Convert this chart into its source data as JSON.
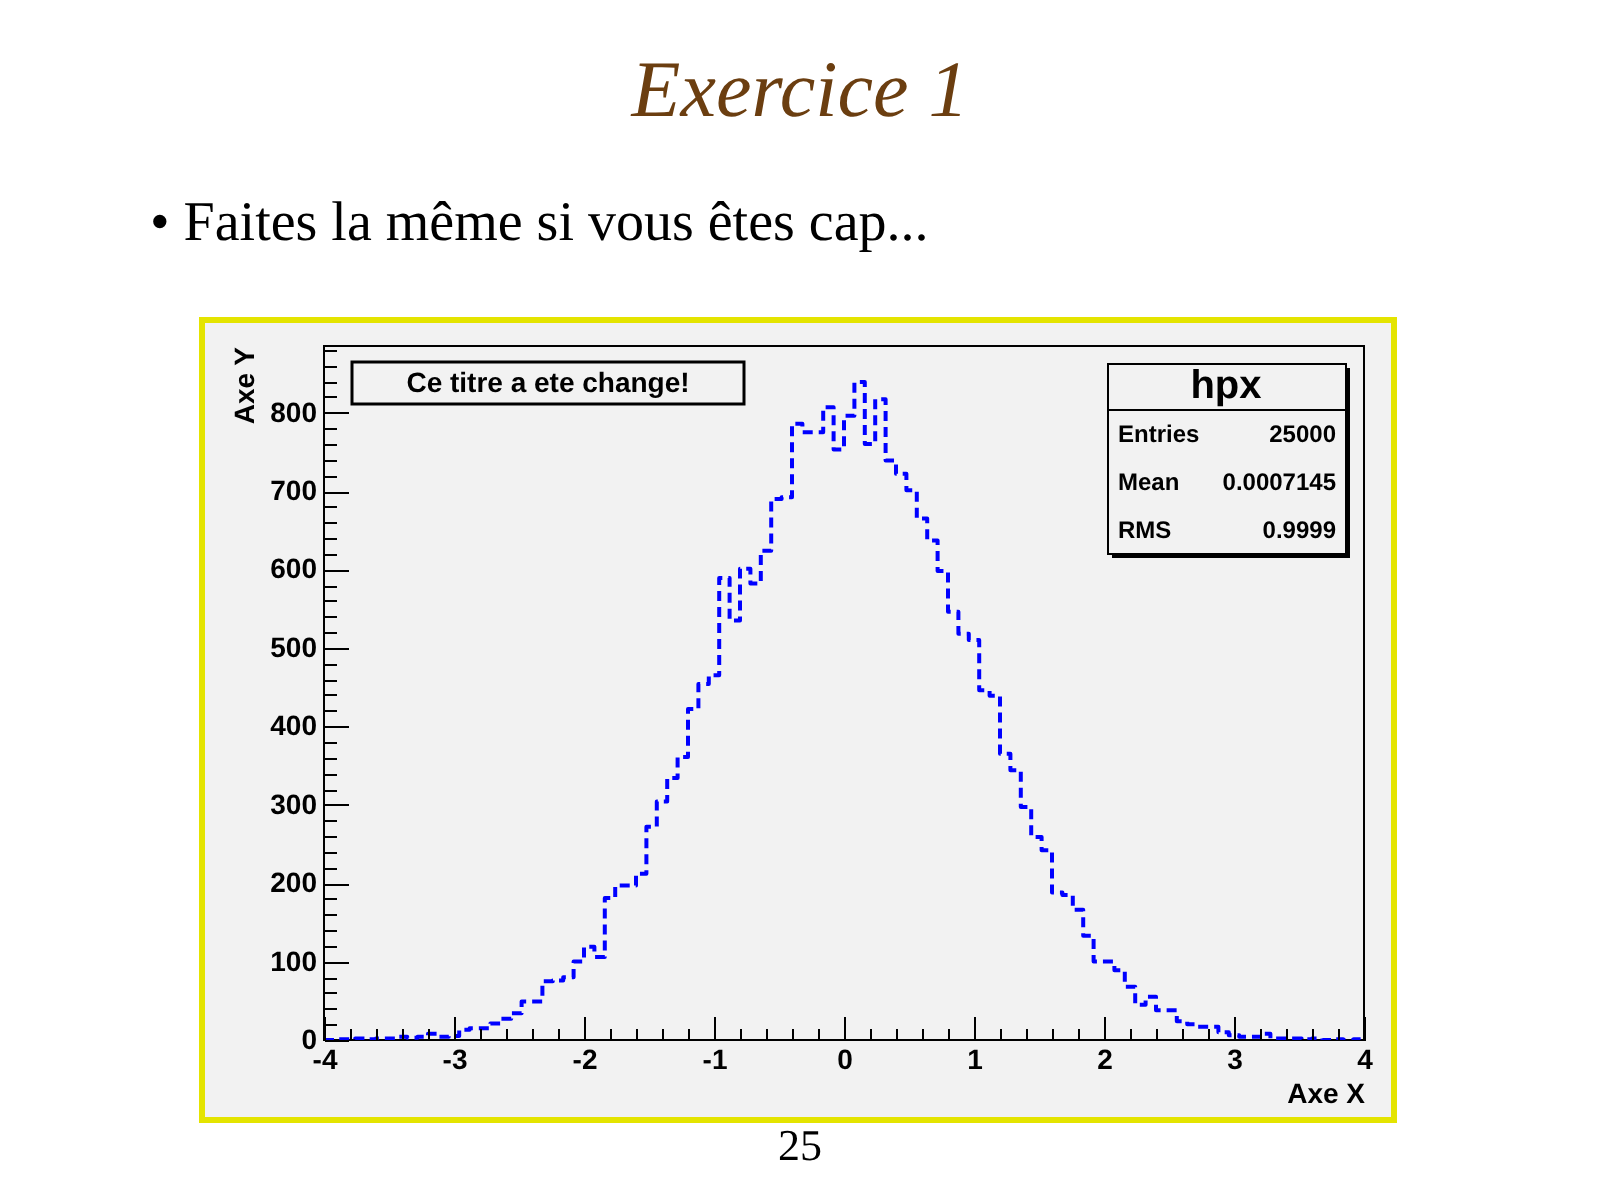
{
  "chart_data": {
    "type": "histogram",
    "title": "Exercice 1",
    "subtitle": "• Faites la même si vous êtes cap...",
    "xlabel": "Axe X",
    "ylabel": "Axe Y",
    "annotations": [
      "Ce titre a ete change!",
      "hpx",
      "Entries",
      "25000",
      "Mean",
      "0.0007145",
      "RMS",
      "0.9999",
      "25"
    ],
    "bins": [
      -4,
      -3.92,
      -3.84,
      -3.76,
      -3.68,
      -3.6,
      -3.52,
      -3.44,
      -3.36,
      -3.28,
      -3.2,
      -3.12,
      -3.04,
      -2.96,
      -2.88,
      -2.8,
      -2.72,
      -2.64,
      -2.56,
      -2.48,
      -2.4,
      -2.32,
      -2.24,
      -2.16,
      -2.08,
      -2,
      -1.92,
      -1.84,
      -1.76,
      -1.68,
      -1.6,
      -1.52,
      -1.44,
      -1.36,
      -1.28,
      -1.2,
      -1.12,
      -1.04,
      -0.96,
      -0.88,
      -0.8,
      -0.72,
      -0.64,
      -0.56,
      -0.48,
      -0.4,
      -0.32,
      -0.24,
      -0.16,
      -0.08,
      0,
      0.08,
      0.16,
      0.24,
      0.32,
      0.4,
      0.48,
      0.56,
      0.64,
      0.72,
      0.8,
      0.88,
      0.96,
      1.04,
      1.12,
      1.2,
      1.28,
      1.36,
      1.44,
      1.52,
      1.6,
      1.68,
      1.76,
      1.84,
      1.92,
      2,
      2.08,
      2.16,
      2.24,
      2.32,
      2.4,
      2.48,
      2.56,
      2.64,
      2.72,
      2.8,
      2.88,
      2.96,
      3.04,
      3.12,
      3.2,
      3.28,
      3.36,
      3.44,
      3.52,
      3.6,
      3.68,
      3.76,
      3.84,
      3.92,
      4
    ],
    "values": [
      0,
      1,
      1,
      2,
      1,
      2,
      2,
      4,
      3,
      4,
      8,
      4,
      5,
      13,
      15,
      15,
      21,
      27,
      34,
      49,
      49,
      75,
      76,
      80,
      100,
      119,
      106,
      181,
      197,
      197,
      212,
      272,
      304,
      334,
      361,
      422,
      454,
      465,
      589,
      535,
      601,
      582,
      624,
      690,
      692,
      786,
      775,
      775,
      807,
      753,
      796,
      839,
      760,
      817,
      739,
      722,
      701,
      665,
      637,
      598,
      546,
      518,
      510,
      446,
      439,
      365,
      344,
      297,
      259,
      242,
      188,
      185,
      166,
      133,
      100,
      100,
      89,
      68,
      45,
      55,
      38,
      38,
      24,
      20,
      17,
      17,
      10,
      6,
      4,
      4,
      8,
      2,
      2,
      2,
      1,
      2,
      0,
      1,
      0,
      1
    ],
    "color": "#0000ff",
    "line_style": "dashed",
    "xlim": [
      -4,
      4
    ],
    "ylim": [
      0,
      885
    ],
    "xticks": [
      -4,
      {
        "value": -3.8,
        "label": null
      },
      {
        "value": -3.6,
        "label": null
      },
      {
        "value": -3.4,
        "label": null
      },
      {
        "value": -3.2,
        "label": null
      },
      -3,
      {
        "value": -2.8,
        "label": null
      },
      {
        "value": -2.6,
        "label": null
      },
      {
        "value": -2.4,
        "label": null
      },
      {
        "value": -2.2,
        "label": null
      },
      -2,
      {
        "value": -1.8,
        "label": null
      },
      {
        "value": -1.6,
        "label": null
      },
      {
        "value": -1.4,
        "label": null
      },
      {
        "value": -1.2,
        "label": null
      },
      -1,
      {
        "value": -0.8,
        "label": null
      },
      {
        "value": -0.6,
        "label": null
      },
      {
        "value": -0.4,
        "label": null
      },
      {
        "value": -0.2,
        "label": null
      },
      0,
      {
        "value": 0.2,
        "label": null
      },
      {
        "value": 0.4,
        "label": null
      },
      {
        "value": 0.6,
        "label": null
      },
      {
        "value": 0.8,
        "label": null
      },
      1,
      {
        "value": 1.2,
        "label": null
      },
      {
        "value": 1.4,
        "label": null
      },
      {
        "value": 1.6,
        "label": null
      },
      {
        "value": 1.8,
        "label": null
      },
      2,
      {
        "value": 2.2,
        "label": null
      },
      {
        "value": 2.4,
        "label": null
      },
      {
        "value": 2.6,
        "label": null
      },
      {
        "value": 2.8,
        "label": null
      },
      3,
      {
        "value": 3.2,
        "label": null
      },
      {
        "value": 3.4,
        "label": null
      },
      {
        "value": 3.6,
        "label": null
      },
      {
        "value": 3.8,
        "label": null
      },
      4
    ],
    "yticks": [
      0,
      {
        "value": 20,
        "label": null
      },
      {
        "value": 40,
        "label": null
      },
      {
        "value": 60,
        "label": null
      },
      {
        "value": 80,
        "label": null
      },
      100,
      {
        "value": 120,
        "label": null
      },
      {
        "value": 140,
        "label": null
      },
      {
        "value": 160,
        "label": null
      },
      {
        "value": 180,
        "label": null
      },
      200,
      {
        "value": 220,
        "label": null
      },
      {
        "value": 240,
        "label": null
      },
      {
        "value": 260,
        "label": null
      },
      {
        "value": 280,
        "label": null
      },
      300,
      {
        "value": 320,
        "label": null
      },
      {
        "value": 340,
        "label": null
      },
      {
        "value": 360,
        "label": null
      },
      {
        "value": 380,
        "label": null
      },
      400,
      {
        "value": 420,
        "label": null
      },
      {
        "value": 440,
        "label": null
      },
      {
        "value": 460,
        "label": null
      },
      {
        "value": 480,
        "label": null
      },
      500,
      {
        "value": 520,
        "label": null
      },
      {
        "value": 540,
        "label": null
      },
      {
        "value": 560,
        "label": null
      },
      {
        "value": 580,
        "label": null
      },
      600,
      {
        "value": 620,
        "label": null
      },
      {
        "value": 640,
        "label": null
      },
      {
        "value": 660,
        "label": null
      },
      {
        "value": 680,
        "label": null
      },
      700,
      {
        "value": 720,
        "label": null
      },
      {
        "value": 740,
        "label": null
      },
      {
        "value": 760,
        "label": null
      },
      {
        "value": 780,
        "label": null
      },
      800,
      {
        "value": 820,
        "label": null
      },
      {
        "value": 840,
        "label": null
      },
      {
        "value": 860,
        "label": null
      },
      {
        "value": 880,
        "label": null
      }
    ]
  }
}
